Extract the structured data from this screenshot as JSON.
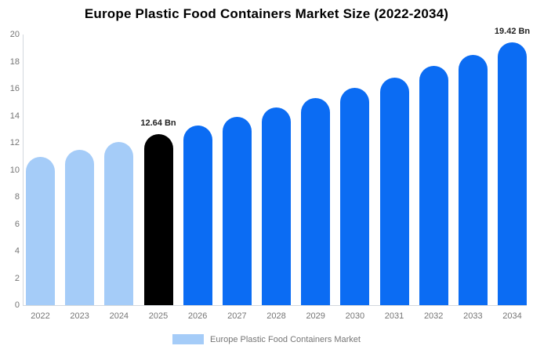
{
  "chart_data": {
    "type": "bar",
    "title": "Europe Plastic Food Containers Market Size (2022-2034)",
    "categories": [
      "2022",
      "2023",
      "2024",
      "2025",
      "2026",
      "2027",
      "2028",
      "2029",
      "2030",
      "2031",
      "2032",
      "2033",
      "2034"
    ],
    "values": [
      10.95,
      11.49,
      12.05,
      12.64,
      13.26,
      13.91,
      14.59,
      15.3,
      16.05,
      16.83,
      17.66,
      18.52,
      19.42
    ],
    "unit": "Bn",
    "xlabel": "",
    "ylabel": "",
    "ylim": [
      0,
      20
    ],
    "ytick_step": 2,
    "grid": false,
    "bar_color_keys": [
      "lightblue",
      "lightblue",
      "lightblue",
      "black",
      "blue",
      "blue",
      "blue",
      "blue",
      "blue",
      "blue",
      "blue",
      "blue",
      "blue"
    ],
    "annotations": [
      {
        "category": "2025",
        "text": "12.64 Bn"
      },
      {
        "category": "2034",
        "text": "19.42 Bn"
      }
    ],
    "legend": {
      "label": "Europe Plastic Food Containers Market",
      "position": "bottom"
    }
  },
  "colors": {
    "lightblue": "#a5ccf8",
    "blue": "#0b6cf3",
    "black": "#000000",
    "axis_line": "#d3d8dd",
    "tick_label": "#757575",
    "annotation": "#222222",
    "title": "#000000"
  }
}
